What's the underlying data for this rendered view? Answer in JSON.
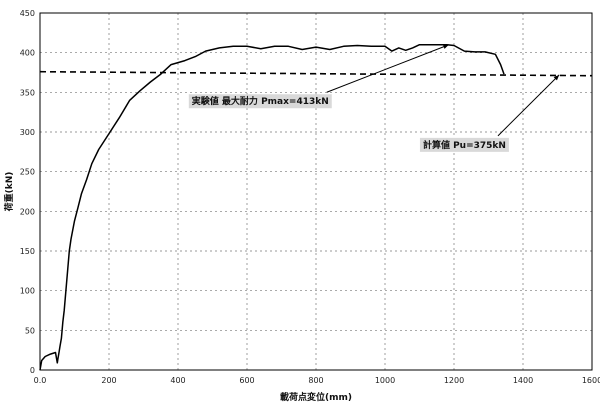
{
  "chart_data": {
    "type": "line",
    "title": "",
    "xlabel": "載荷点変位(mm)",
    "ylabel": "荷重(kN)",
    "xlim": [
      0,
      1600
    ],
    "ylim": [
      0,
      450
    ],
    "x_ticks": [
      "0.0",
      "200",
      "400",
      "600",
      "800",
      "1000",
      "1200",
      "1400",
      "1600"
    ],
    "y_ticks": [
      "0",
      "50",
      "100",
      "150",
      "200",
      "250",
      "300",
      "350",
      "400",
      "450"
    ],
    "grid": true,
    "series": [
      {
        "style": "solid",
        "points": [
          [
            0,
            0
          ],
          [
            5,
            12
          ],
          [
            15,
            17
          ],
          [
            30,
            20
          ],
          [
            45,
            22
          ],
          [
            50,
            9
          ],
          [
            52,
            14
          ],
          [
            55,
            22
          ],
          [
            58,
            30
          ],
          [
            62,
            40
          ],
          [
            66,
            60
          ],
          [
            70,
            75
          ],
          [
            75,
            100
          ],
          [
            80,
            125
          ],
          [
            85,
            150
          ],
          [
            90,
            165
          ],
          [
            100,
            188
          ],
          [
            110,
            205
          ],
          [
            120,
            222
          ],
          [
            135,
            240
          ],
          [
            150,
            260
          ],
          [
            170,
            278
          ],
          [
            200,
            298
          ],
          [
            230,
            318
          ],
          [
            260,
            340
          ],
          [
            290,
            352
          ],
          [
            320,
            363
          ],
          [
            350,
            373
          ],
          [
            380,
            385
          ],
          [
            420,
            390
          ],
          [
            450,
            395
          ],
          [
            480,
            402
          ],
          [
            520,
            406
          ],
          [
            560,
            408
          ],
          [
            600,
            408
          ],
          [
            640,
            405
          ],
          [
            680,
            408
          ],
          [
            720,
            408
          ],
          [
            760,
            404
          ],
          [
            800,
            407
          ],
          [
            840,
            404
          ],
          [
            880,
            408
          ],
          [
            920,
            409
          ],
          [
            960,
            408
          ],
          [
            1000,
            408
          ],
          [
            1020,
            402
          ],
          [
            1040,
            406
          ],
          [
            1060,
            403
          ],
          [
            1080,
            406
          ],
          [
            1100,
            410
          ],
          [
            1140,
            410
          ],
          [
            1180,
            410
          ],
          [
            1200,
            409
          ],
          [
            1230,
            402
          ],
          [
            1260,
            401
          ],
          [
            1290,
            401
          ],
          [
            1320,
            398
          ],
          [
            1335,
            385
          ],
          [
            1345,
            373
          ]
        ]
      },
      {
        "style": "dashed",
        "points": [
          [
            0,
            376
          ],
          [
            1600,
            371
          ]
        ]
      }
    ],
    "annotations": [
      {
        "label": "実験値 最大耐力 Pmax=413kN",
        "text_pos": [
          440,
          335
        ],
        "arrow_to": [
          1185,
          410
        ]
      },
      {
        "label": "計算値 Pu=375kN",
        "text_pos": [
          1110,
          280
        ],
        "arrow_to": [
          1505,
          372
        ]
      }
    ]
  }
}
